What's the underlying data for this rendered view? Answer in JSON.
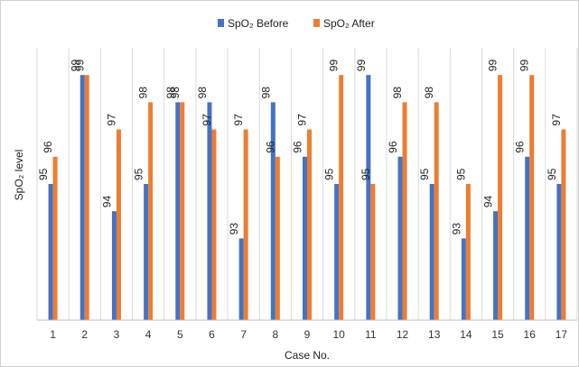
{
  "chart_data": {
    "type": "bar",
    "title": "",
    "xlabel": "Case No.",
    "ylabel": "SpO₂ level",
    "categories": [
      "1",
      "2",
      "3",
      "4",
      "5",
      "6",
      "7",
      "8",
      "9",
      "10",
      "11",
      "12",
      "13",
      "14",
      "15",
      "16",
      "17"
    ],
    "series": [
      {
        "name": "SpO₂ Before",
        "color": "#4472C4",
        "values": [
          95,
          99,
          94,
          95,
          98,
          98,
          93,
          98,
          96,
          95,
          99,
          96,
          95,
          93,
          94,
          96,
          95
        ]
      },
      {
        "name": "SpO₂ After",
        "color": "#ED7D31",
        "values": [
          96,
          99,
          97,
          98,
          98,
          97,
          97,
          96,
          97,
          99,
          95,
          98,
          98,
          95,
          99,
          99,
          97
        ]
      }
    ],
    "ylim": [
      90,
      100
    ],
    "grid": true,
    "grid_axis": "x",
    "legend_placement": "top-center",
    "show_data_labels": true,
    "y_tick_labels_visible": false
  }
}
